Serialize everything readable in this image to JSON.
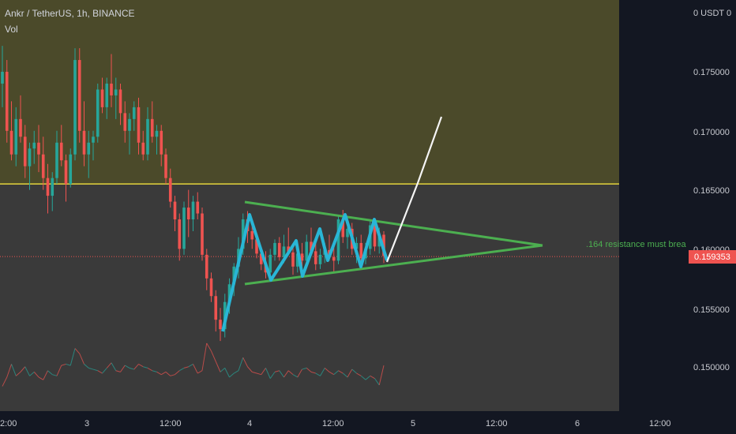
{
  "header": {
    "symbol_line": "Ankr / TetherUS, 1h, BINANCE",
    "vol_label": "Vol"
  },
  "price_axis": {
    "currency": "0 USDT 0",
    "ticks": [
      "0.175000",
      "0.170000",
      "0.165000",
      "0.160000",
      "0.155000",
      "0.150000"
    ],
    "current_price": "0.159353"
  },
  "time_axis": {
    "ticks": [
      "2:00",
      "3",
      "12:00",
      "4",
      "12:00",
      "5",
      "12:00",
      "6",
      "12:00"
    ]
  },
  "annotation": {
    "text": ".164 resistance must brea"
  },
  "colors": {
    "up": "#26a69a",
    "down": "#ef5350",
    "zone": "#4b4a2a",
    "resistance_line": "#e4d43c",
    "triangle": "#4caf50",
    "zigzag": "#29b6d6",
    "arrow": "#f5f5f5",
    "annotation": "#4caf50",
    "price_tag": "#ef5350"
  },
  "chart_data": {
    "type": "candlestick",
    "symbol": "Ankr / TetherUS",
    "interval": "1h",
    "exchange": "BINANCE",
    "ylim": [
      0.1475,
      0.1795
    ],
    "resistance_level": 0.1655,
    "current_price": 0.159353,
    "x_ticks": [
      "2:00",
      "3",
      "12:00",
      "4",
      "12:00",
      "5",
      "12:00",
      "6",
      "12:00"
    ],
    "y_ticks": [
      0.175,
      0.17,
      0.165,
      0.16,
      0.155,
      0.15
    ],
    "candles": [
      [
        0.174,
        0.1772,
        0.172,
        0.175
      ],
      [
        0.175,
        0.176,
        0.169,
        0.17
      ],
      [
        0.17,
        0.1725,
        0.1675,
        0.168
      ],
      [
        0.168,
        0.172,
        0.167,
        0.171
      ],
      [
        0.171,
        0.173,
        0.169,
        0.1695
      ],
      [
        0.1695,
        0.1705,
        0.166,
        0.167
      ],
      [
        0.167,
        0.169,
        0.165,
        0.1685
      ],
      [
        0.1685,
        0.17,
        0.1672,
        0.169
      ],
      [
        0.169,
        0.1705,
        0.1665,
        0.168
      ],
      [
        0.168,
        0.1695,
        0.165,
        0.166
      ],
      [
        0.166,
        0.1672,
        0.163,
        0.1645
      ],
      [
        0.1645,
        0.1665,
        0.1632,
        0.166
      ],
      [
        0.166,
        0.17,
        0.1655,
        0.169
      ],
      [
        0.169,
        0.1705,
        0.167,
        0.1675
      ],
      [
        0.1675,
        0.168,
        0.164,
        0.1655
      ],
      [
        0.1655,
        0.1685,
        0.1652,
        0.168
      ],
      [
        0.168,
        0.177,
        0.1675,
        0.176
      ],
      [
        0.176,
        0.177,
        0.169,
        0.17
      ],
      [
        0.17,
        0.1725,
        0.167,
        0.168
      ],
      [
        0.168,
        0.17,
        0.166,
        0.169
      ],
      [
        0.169,
        0.17,
        0.1675,
        0.1695
      ],
      [
        0.1695,
        0.174,
        0.169,
        0.1735
      ],
      [
        0.1735,
        0.1745,
        0.1715,
        0.172
      ],
      [
        0.172,
        0.1745,
        0.171,
        0.174
      ],
      [
        0.174,
        0.1765,
        0.172,
        0.173
      ],
      [
        0.173,
        0.1745,
        0.171,
        0.1735
      ],
      [
        0.1735,
        0.174,
        0.1705,
        0.1715
      ],
      [
        0.1715,
        0.1725,
        0.169,
        0.17
      ],
      [
        0.17,
        0.1715,
        0.168,
        0.171
      ],
      [
        0.171,
        0.1725,
        0.17,
        0.172
      ],
      [
        0.172,
        0.1728,
        0.168,
        0.169
      ],
      [
        0.169,
        0.17,
        0.1675,
        0.168
      ],
      [
        0.168,
        0.172,
        0.1675,
        0.171
      ],
      [
        0.171,
        0.1725,
        0.169,
        0.1695
      ],
      [
        0.1695,
        0.1705,
        0.168,
        0.17
      ],
      [
        0.17,
        0.1705,
        0.167,
        0.168
      ],
      [
        0.168,
        0.1685,
        0.1655,
        0.166
      ],
      [
        0.166,
        0.1668,
        0.1635,
        0.164
      ],
      [
        0.164,
        0.1645,
        0.1615,
        0.1625
      ],
      [
        0.1625,
        0.163,
        0.159,
        0.16
      ],
      [
        0.16,
        0.164,
        0.1595,
        0.1635
      ],
      [
        0.1635,
        0.165,
        0.161,
        0.1625
      ],
      [
        0.1625,
        0.1645,
        0.1615,
        0.164
      ],
      [
        0.164,
        0.1648,
        0.1625,
        0.163
      ],
      [
        0.163,
        0.1635,
        0.159,
        0.1595
      ],
      [
        0.1595,
        0.16,
        0.1565,
        0.1575
      ],
      [
        0.1575,
        0.158,
        0.1555,
        0.156
      ],
      [
        0.156,
        0.1565,
        0.153,
        0.154
      ],
      [
        0.154,
        0.155,
        0.1522,
        0.1532
      ],
      [
        0.1532,
        0.1562,
        0.1525,
        0.1555
      ],
      [
        0.1555,
        0.1575,
        0.1545,
        0.157
      ],
      [
        0.157,
        0.1588,
        0.156,
        0.1585
      ],
      [
        0.1585,
        0.161,
        0.1575,
        0.16
      ],
      [
        0.16,
        0.163,
        0.1595,
        0.1625
      ],
      [
        0.1625,
        0.1632,
        0.1605,
        0.1615
      ],
      [
        0.1615,
        0.1622,
        0.16,
        0.1608
      ],
      [
        0.1608,
        0.1612,
        0.1592,
        0.1596
      ],
      [
        0.1596,
        0.16,
        0.1582,
        0.1587
      ],
      [
        0.1587,
        0.1598,
        0.1575,
        0.158
      ],
      [
        0.158,
        0.16,
        0.1577,
        0.1595
      ],
      [
        0.1595,
        0.1608,
        0.159,
        0.1605
      ],
      [
        0.1605,
        0.161,
        0.159,
        0.1593
      ],
      [
        0.1593,
        0.1612,
        0.1588,
        0.1602
      ],
      [
        0.1602,
        0.1618,
        0.1595,
        0.1597
      ],
      [
        0.1597,
        0.1602,
        0.1578,
        0.1585
      ],
      [
        0.1585,
        0.16,
        0.158,
        0.1596
      ],
      [
        0.1596,
        0.1605,
        0.1585,
        0.159
      ],
      [
        0.159,
        0.1612,
        0.1585,
        0.1606
      ],
      [
        0.1606,
        0.1618,
        0.1595,
        0.1598
      ],
      [
        0.1598,
        0.1605,
        0.1582,
        0.1587
      ],
      [
        0.1587,
        0.16,
        0.1583,
        0.1595
      ],
      [
        0.1595,
        0.1605,
        0.1588,
        0.1599
      ],
      [
        0.1599,
        0.1612,
        0.159,
        0.1593
      ],
      [
        0.1593,
        0.1603,
        0.158,
        0.159
      ],
      [
        0.159,
        0.1628,
        0.1587,
        0.1625
      ],
      [
        0.1625,
        0.1633,
        0.1605,
        0.161
      ],
      [
        0.161,
        0.1622,
        0.16,
        0.1617
      ],
      [
        0.1617,
        0.1622,
        0.1595,
        0.16
      ],
      [
        0.16,
        0.161,
        0.1588,
        0.1605
      ],
      [
        0.1605,
        0.1612,
        0.1588,
        0.1592
      ],
      [
        0.1592,
        0.1605,
        0.1587,
        0.16
      ],
      [
        0.16,
        0.1625,
        0.1595,
        0.162
      ],
      [
        0.162,
        0.1625,
        0.1598,
        0.1602
      ],
      [
        0.1602,
        0.1618,
        0.1596,
        0.1612
      ],
      [
        0.1612,
        0.1615,
        0.1588,
        0.1594
      ]
    ],
    "volume": [
      19,
      26,
      36,
      27,
      30,
      34,
      27,
      30,
      26,
      24,
      31,
      28,
      27,
      35,
      36,
      35,
      48,
      44,
      36,
      33,
      32,
      31,
      29,
      33,
      37,
      31,
      30,
      35,
      33,
      32,
      36,
      34,
      33,
      31,
      30,
      28,
      30,
      27,
      28,
      31,
      33,
      34,
      36,
      29,
      31,
      52,
      46,
      38,
      30,
      33,
      26,
      29,
      31,
      41,
      34,
      30,
      29,
      28,
      33,
      25,
      30,
      31,
      26,
      31,
      28,
      26,
      32,
      33,
      30,
      29,
      27,
      33,
      30,
      28,
      31,
      29,
      26,
      32,
      29,
      27,
      24,
      27,
      25,
      20,
      35
    ]
  }
}
